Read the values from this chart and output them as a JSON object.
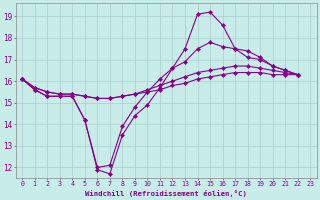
{
  "xlabel": "Windchill (Refroidissement éolien,°C)",
  "xlim_min": -0.5,
  "xlim_max": 23.5,
  "ylim_min": 11.5,
  "ylim_max": 19.6,
  "bg_color": "#c8ece8",
  "line_color": "#880088",
  "grid_color": "#aacccc",
  "xticks": [
    0,
    1,
    2,
    3,
    4,
    5,
    6,
    7,
    8,
    9,
    10,
    11,
    12,
    13,
    14,
    15,
    16,
    17,
    18,
    19,
    20,
    21,
    22,
    23
  ],
  "yticks": [
    12,
    13,
    14,
    15,
    16,
    17,
    18,
    19
  ],
  "series": [
    {
      "x": [
        0,
        1,
        2,
        3,
        4,
        5,
        6,
        7,
        8,
        9,
        10,
        11,
        12,
        13,
        14,
        15,
        16,
        17,
        18,
        19,
        20,
        21,
        22
      ],
      "y": [
        16.1,
        15.6,
        15.3,
        15.3,
        15.3,
        14.2,
        11.9,
        11.7,
        13.5,
        14.4,
        14.9,
        15.7,
        16.6,
        17.5,
        19.1,
        19.2,
        18.6,
        17.5,
        17.1,
        17.0,
        16.7,
        16.5,
        16.3
      ]
    },
    {
      "x": [
        0,
        1,
        2,
        3,
        4,
        5,
        6,
        7,
        8,
        9,
        10,
        11,
        12,
        13,
        14,
        15,
        16,
        17,
        18,
        19,
        20,
        21,
        22
      ],
      "y": [
        16.1,
        15.6,
        15.3,
        15.3,
        15.3,
        14.2,
        12.0,
        12.1,
        13.9,
        14.8,
        15.5,
        16.1,
        16.6,
        16.9,
        17.5,
        17.8,
        17.6,
        17.5,
        17.4,
        17.1,
        16.7,
        16.5,
        16.3
      ]
    },
    {
      "x": [
        0,
        1,
        2,
        3,
        4,
        5,
        6,
        7,
        8,
        9,
        10,
        11,
        12,
        13,
        14,
        15,
        16,
        17,
        18,
        19,
        20,
        21,
        22
      ],
      "y": [
        16.1,
        15.7,
        15.5,
        15.4,
        15.4,
        15.3,
        15.2,
        15.2,
        15.3,
        15.4,
        15.5,
        15.6,
        15.8,
        15.9,
        16.1,
        16.2,
        16.3,
        16.4,
        16.4,
        16.4,
        16.3,
        16.3,
        16.3
      ]
    },
    {
      "x": [
        0,
        1,
        2,
        3,
        4,
        5,
        6,
        7,
        8,
        9,
        10,
        11,
        12,
        13,
        14,
        15,
        16,
        17,
        18,
        19,
        20,
        21,
        22
      ],
      "y": [
        16.1,
        15.7,
        15.5,
        15.4,
        15.4,
        15.3,
        15.2,
        15.2,
        15.3,
        15.4,
        15.6,
        15.8,
        16.0,
        16.2,
        16.4,
        16.5,
        16.6,
        16.7,
        16.7,
        16.6,
        16.5,
        16.4,
        16.3
      ]
    }
  ]
}
